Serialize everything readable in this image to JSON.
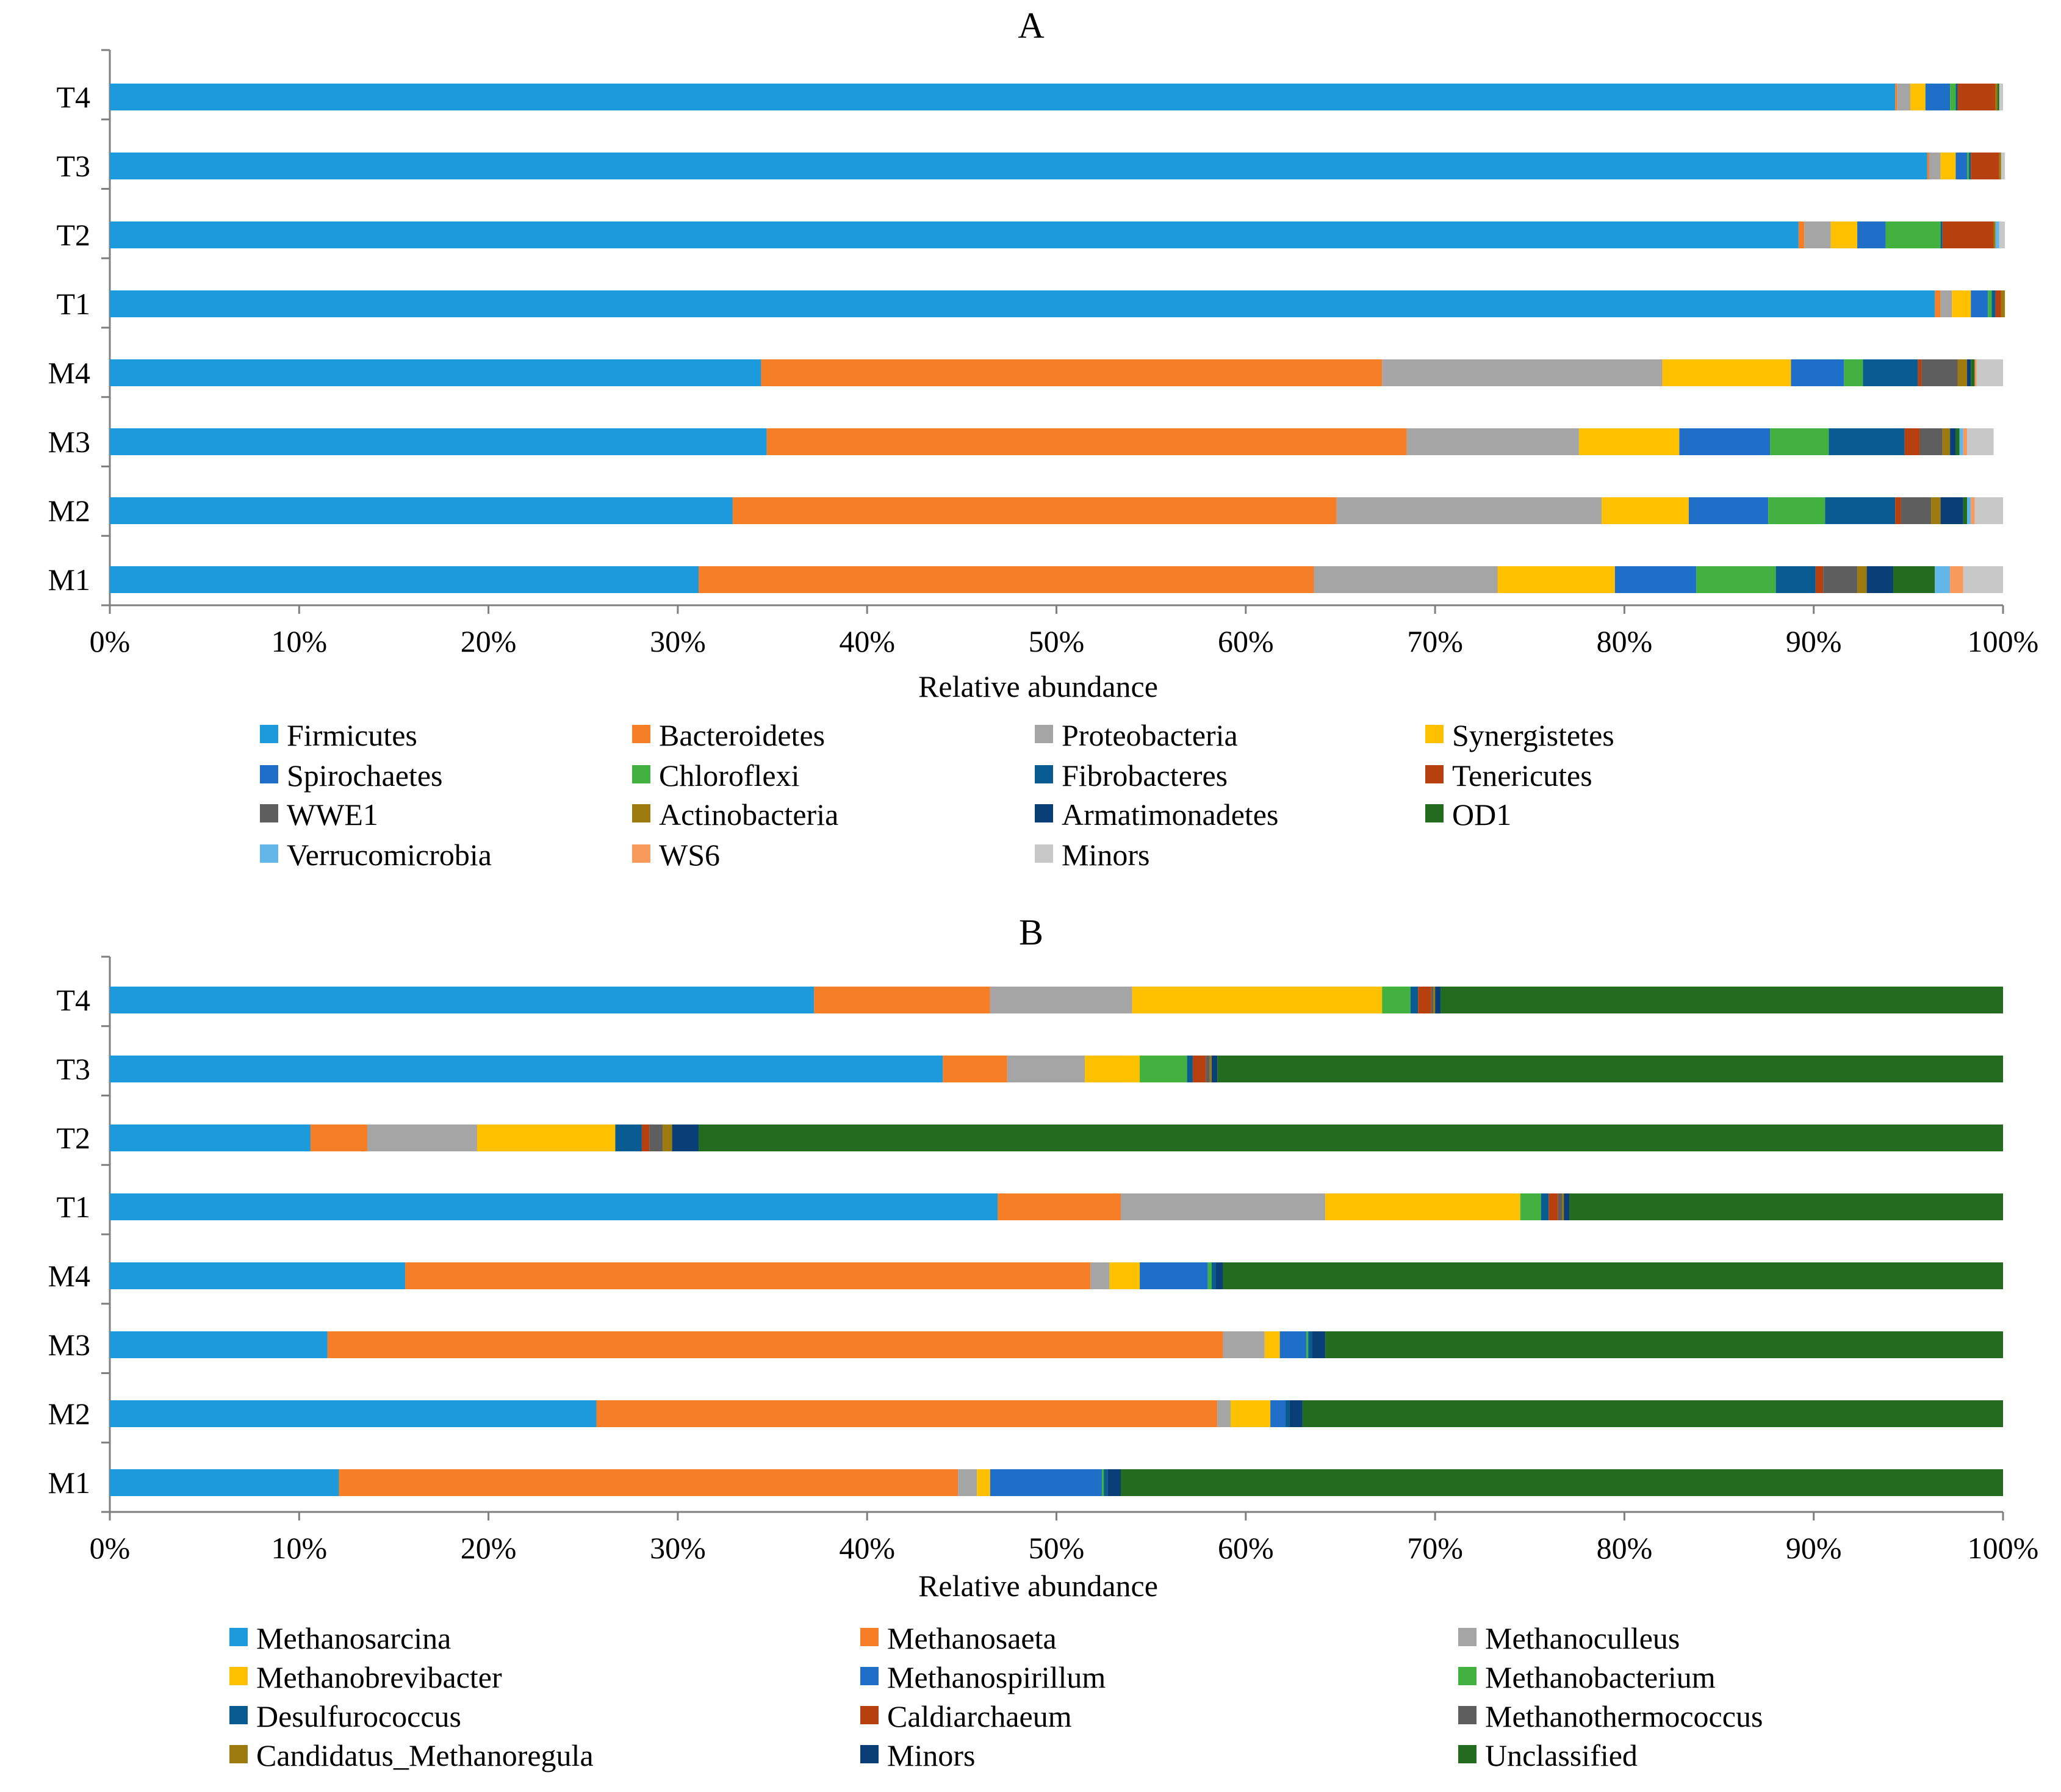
{
  "chart_data": [
    {
      "type": "bar",
      "orientation": "horizontal",
      "stacked": true,
      "title": "A",
      "xlabel": "Relative abundance",
      "ylabel": "",
      "xlim": [
        0,
        100
      ],
      "x_ticks": [
        "0%",
        "10%",
        "20%",
        "30%",
        "40%",
        "50%",
        "60%",
        "70%",
        "80%",
        "90%",
        "100%"
      ],
      "categories": [
        "T4",
        "T3",
        "T2",
        "T1",
        "M4",
        "M3",
        "M2",
        "M1"
      ],
      "legend_position": "bottom",
      "series": [
        {
          "name": "Firmicutes",
          "color": "#1C9ADB",
          "values": [
            94.3,
            96.0,
            89.2,
            96.4,
            34.4,
            34.7,
            32.9,
            31.1
          ]
        },
        {
          "name": "Bacteroidetes",
          "color": "#F57E26",
          "values": [
            0.1,
            0.1,
            0.3,
            0.3,
            32.8,
            33.8,
            31.9,
            32.5
          ]
        },
        {
          "name": "Proteobacteria",
          "color": "#A5A5A5",
          "values": [
            0.7,
            0.6,
            1.4,
            0.6,
            14.8,
            9.1,
            14.0,
            9.7
          ]
        },
        {
          "name": "Synergistetes",
          "color": "#FFC000",
          "values": [
            0.8,
            0.8,
            1.4,
            1.0,
            6.8,
            5.3,
            4.6,
            6.2
          ]
        },
        {
          "name": "Spirochaetes",
          "color": "#1F6FC9",
          "values": [
            1.3,
            0.6,
            1.5,
            0.9,
            2.8,
            4.8,
            4.2,
            4.3
          ]
        },
        {
          "name": "Chloroflexi",
          "color": "#43B13F",
          "values": [
            0.3,
            0.1,
            2.9,
            0.2,
            1.0,
            3.1,
            3.0,
            4.2
          ]
        },
        {
          "name": "Fibrobacteres",
          "color": "#095C91",
          "values": [
            0.1,
            0.1,
            0.1,
            0.2,
            2.9,
            4.0,
            3.7,
            2.1
          ]
        },
        {
          "name": "Tenericutes",
          "color": "#B7410E",
          "values": [
            2.0,
            1.5,
            2.7,
            0.3,
            0.2,
            0.8,
            0.3,
            0.4
          ]
        },
        {
          "name": "WWE1",
          "color": "#5E5E5E",
          "values": [
            0.0,
            0.0,
            0.0,
            0.0,
            1.9,
            1.2,
            1.6,
            1.8
          ]
        },
        {
          "name": "Actinobacteria",
          "color": "#9C7A0D",
          "values": [
            0.1,
            0.1,
            0.1,
            0.2,
            0.5,
            0.4,
            0.5,
            0.5
          ]
        },
        {
          "name": "Armatimonadetes",
          "color": "#0A3E77",
          "values": [
            0.0,
            0.0,
            0.0,
            0.0,
            0.2,
            0.3,
            1.2,
            1.4
          ]
        },
        {
          "name": "OD1",
          "color": "#236C1F",
          "values": [
            0.1,
            0.0,
            0.0,
            0.0,
            0.2,
            0.2,
            0.2,
            2.2
          ]
        },
        {
          "name": "Verrucomicrobia",
          "color": "#62B6E8",
          "values": [
            0.0,
            0.0,
            0.2,
            0.0,
            0.0,
            0.2,
            0.2,
            0.8
          ]
        },
        {
          "name": "WS6",
          "color": "#F89A5C",
          "values": [
            0.0,
            0.0,
            0.0,
            0.0,
            0.1,
            0.2,
            0.2,
            0.7
          ]
        },
        {
          "name": "Minors",
          "color": "#C8C8C8",
          "values": [
            0.2,
            0.2,
            0.3,
            0.0,
            1.4,
            1.4,
            1.5,
            2.1
          ]
        }
      ]
    },
    {
      "type": "bar",
      "orientation": "horizontal",
      "stacked": true,
      "title": "B",
      "xlabel": "Relative abundance",
      "ylabel": "",
      "xlim": [
        0,
        100
      ],
      "x_ticks": [
        "0%",
        "10%",
        "20%",
        "30%",
        "40%",
        "50%",
        "60%",
        "70%",
        "80%",
        "90%",
        "100%"
      ],
      "categories": [
        "T4",
        "T3",
        "T2",
        "T1",
        "M4",
        "M3",
        "M2",
        "M1"
      ],
      "legend_position": "bottom",
      "series": [
        {
          "name": "Methanosarcina",
          "color": "#1C9ADB",
          "values": [
            37.2,
            44.0,
            10.6,
            46.9,
            15.6,
            11.5,
            25.7,
            12.1
          ]
        },
        {
          "name": "Methanosaeta",
          "color": "#F57E26",
          "values": [
            9.3,
            3.4,
            3.0,
            6.5,
            36.2,
            47.3,
            32.8,
            32.7
          ]
        },
        {
          "name": "Methanoculleus",
          "color": "#A5A5A5",
          "values": [
            7.5,
            4.1,
            5.8,
            10.8,
            1.0,
            2.2,
            0.7,
            1.0
          ]
        },
        {
          "name": "Methanobrevibacter",
          "color": "#FFC000",
          "values": [
            13.2,
            2.9,
            7.3,
            10.3,
            1.6,
            0.8,
            2.1,
            0.7
          ]
        },
        {
          "name": "Methanospirillum",
          "color": "#1F6FC9",
          "values": [
            0.0,
            0.0,
            0.0,
            0.0,
            3.6,
            1.4,
            0.8,
            5.9
          ]
        },
        {
          "name": "Methanobacterium",
          "color": "#43B13F",
          "values": [
            1.5,
            2.5,
            0.0,
            1.1,
            0.2,
            0.1,
            0.0,
            0.1
          ]
        },
        {
          "name": "Desulfurococcus",
          "color": "#095C91",
          "values": [
            0.4,
            0.3,
            1.4,
            0.4,
            0.2,
            0.2,
            0.2,
            0.2
          ]
        },
        {
          "name": "Caldiarchaeum",
          "color": "#B7410E",
          "values": [
            0.7,
            0.7,
            0.4,
            0.5,
            0.0,
            0.0,
            0.0,
            0.0
          ]
        },
        {
          "name": "Methanothermococcus",
          "color": "#5E5E5E",
          "values": [
            0.1,
            0.2,
            0.7,
            0.2,
            0.0,
            0.0,
            0.0,
            0.0
          ]
        },
        {
          "name": "Candidatus_Methanoregula",
          "color": "#9C7A0D",
          "values": [
            0.1,
            0.1,
            0.5,
            0.1,
            0.0,
            0.0,
            0.0,
            0.0
          ]
        },
        {
          "name": "Minors",
          "color": "#0A3E77",
          "values": [
            0.3,
            0.3,
            1.4,
            0.3,
            0.4,
            0.7,
            0.7,
            0.7
          ]
        },
        {
          "name": "Unclassified",
          "color": "#236C1F",
          "values": [
            29.7,
            41.5,
            68.9,
            22.9,
            41.2,
            35.8,
            37.0,
            46.6
          ]
        }
      ]
    }
  ]
}
